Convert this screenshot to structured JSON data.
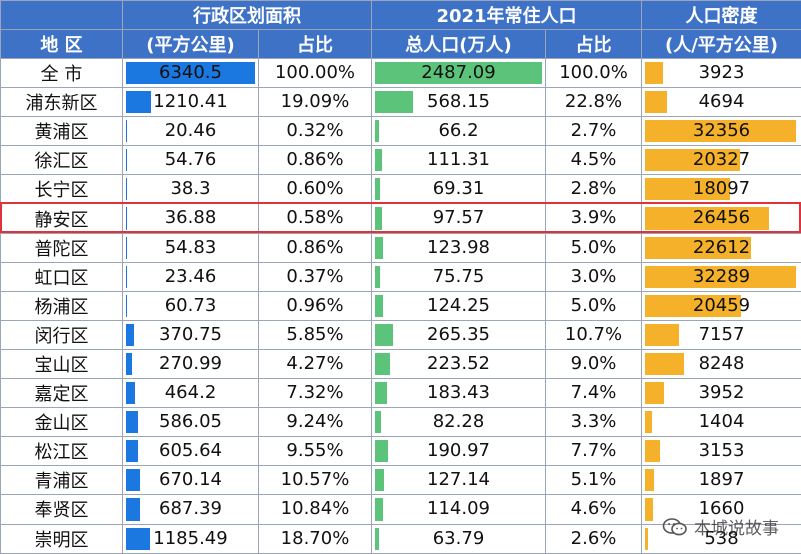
{
  "headers": {
    "group_area": "行政区划面积",
    "group_pop": "2021年常住人口",
    "group_density": "人口密度",
    "col_region": "地  区",
    "col_area": "(平方公里)",
    "col_area_share": "占比",
    "col_pop": "总人口(万人)",
    "col_pop_share": "占比",
    "col_density": "(人/平方公里)"
  },
  "colors": {
    "header": "#3d72c7",
    "area_bar": "#1b78e0",
    "pop_bar": "#5cc47a",
    "density_bar": "#f5b129",
    "highlight": "#e0323a"
  },
  "rows": [
    {
      "name": "全  市",
      "area": "6340.5",
      "area_share": "100.00%",
      "pop": "2487.09",
      "pop_share": "100.0%",
      "density": "3923",
      "area_v": 6340.5,
      "pop_v": 2487.09,
      "density_v": 3923
    },
    {
      "name": "浦东新区",
      "area": "1210.41",
      "area_share": "19.09%",
      "pop": "568.15",
      "pop_share": "22.8%",
      "density": "4694",
      "area_v": 1210.41,
      "pop_v": 568.15,
      "density_v": 4694
    },
    {
      "name": "黄浦区",
      "area": "20.46",
      "area_share": "0.32%",
      "pop": "66.2",
      "pop_share": "2.7%",
      "density": "32356",
      "area_v": 20.46,
      "pop_v": 66.2,
      "density_v": 32356
    },
    {
      "name": "徐汇区",
      "area": "54.76",
      "area_share": "0.86%",
      "pop": "111.31",
      "pop_share": "4.5%",
      "density": "20327",
      "area_v": 54.76,
      "pop_v": 111.31,
      "density_v": 20327
    },
    {
      "name": "长宁区",
      "area": "38.3",
      "area_share": "0.60%",
      "pop": "69.31",
      "pop_share": "2.8%",
      "density": "18097",
      "area_v": 38.3,
      "pop_v": 69.31,
      "density_v": 18097
    },
    {
      "name": "静安区",
      "area": "36.88",
      "area_share": "0.58%",
      "pop": "97.57",
      "pop_share": "3.9%",
      "density": "26456",
      "area_v": 36.88,
      "pop_v": 97.57,
      "density_v": 26456
    },
    {
      "name": "普陀区",
      "area": "54.83",
      "area_share": "0.86%",
      "pop": "123.98",
      "pop_share": "5.0%",
      "density": "22612",
      "area_v": 54.83,
      "pop_v": 123.98,
      "density_v": 22612
    },
    {
      "name": "虹口区",
      "area": "23.46",
      "area_share": "0.37%",
      "pop": "75.75",
      "pop_share": "3.0%",
      "density": "32289",
      "area_v": 23.46,
      "pop_v": 75.75,
      "density_v": 32289
    },
    {
      "name": "杨浦区",
      "area": "60.73",
      "area_share": "0.96%",
      "pop": "124.25",
      "pop_share": "5.0%",
      "density": "20459",
      "area_v": 60.73,
      "pop_v": 124.25,
      "density_v": 20459
    },
    {
      "name": "闵行区",
      "area": "370.75",
      "area_share": "5.85%",
      "pop": "265.35",
      "pop_share": "10.7%",
      "density": "7157",
      "area_v": 370.75,
      "pop_v": 265.35,
      "density_v": 7157
    },
    {
      "name": "宝山区",
      "area": "270.99",
      "area_share": "4.27%",
      "pop": "223.52",
      "pop_share": "9.0%",
      "density": "8248",
      "area_v": 270.99,
      "pop_v": 223.52,
      "density_v": 8248
    },
    {
      "name": "嘉定区",
      "area": "464.2",
      "area_share": "7.32%",
      "pop": "183.43",
      "pop_share": "7.4%",
      "density": "3952",
      "area_v": 464.2,
      "pop_v": 183.43,
      "density_v": 3952
    },
    {
      "name": "金山区",
      "area": "586.05",
      "area_share": "9.24%",
      "pop": "82.28",
      "pop_share": "3.3%",
      "density": "1404",
      "area_v": 586.05,
      "pop_v": 82.28,
      "density_v": 1404
    },
    {
      "name": "松江区",
      "area": "605.64",
      "area_share": "9.55%",
      "pop": "190.97",
      "pop_share": "7.7%",
      "density": "3153",
      "area_v": 605.64,
      "pop_v": 190.97,
      "density_v": 3153
    },
    {
      "name": "青浦区",
      "area": "670.14",
      "area_share": "10.57%",
      "pop": "127.14",
      "pop_share": "5.1%",
      "density": "1897",
      "area_v": 670.14,
      "pop_v": 127.14,
      "density_v": 1897
    },
    {
      "name": "奉贤区",
      "area": "687.39",
      "area_share": "10.84%",
      "pop": "114.09",
      "pop_share": "4.6%",
      "density": "1660",
      "area_v": 687.39,
      "pop_v": 114.09,
      "density_v": 1660
    },
    {
      "name": "崇明区",
      "area": "1185.49",
      "area_share": "18.70%",
      "pop": "63.79",
      "pop_share": "2.6%",
      "density": "538",
      "area_v": 1185.49,
      "pop_v": 63.79,
      "density_v": 538
    }
  ],
  "highlighted_row": "静安区",
  "watermark": {
    "icon": "wechat-icon",
    "text": "本城说故事"
  }
}
